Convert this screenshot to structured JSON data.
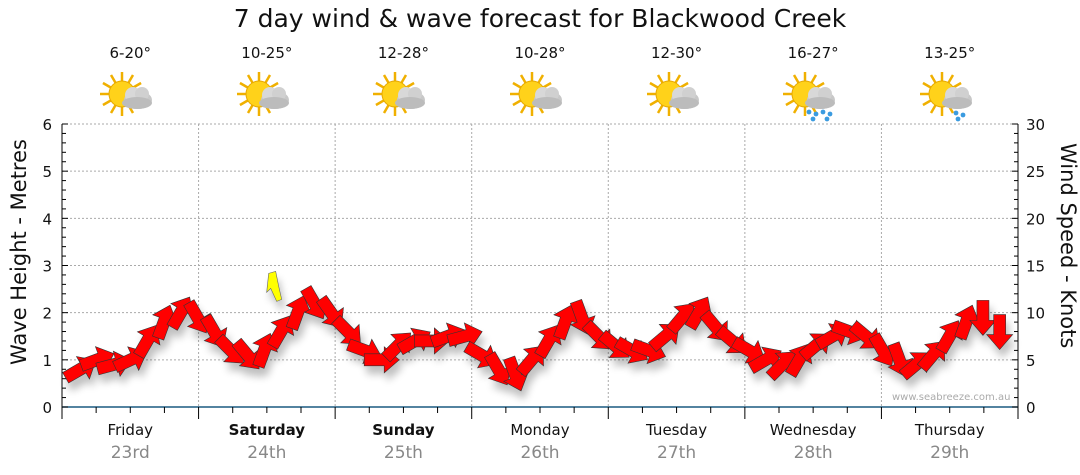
{
  "title": "7 day wind & wave forecast for Blackwood Creek",
  "left_axis_label": "Wave Height - Metres",
  "right_axis_label": "Wind Speed - Knots",
  "watermark": "www.seabreeze.com.au",
  "days": [
    {
      "name": "Friday",
      "date": "23rd",
      "temp": "6-20°",
      "icon": "partly-cloudy-icon",
      "bold": false
    },
    {
      "name": "Saturday",
      "date": "24th",
      "temp": "10-25°",
      "icon": "partly-cloudy-icon",
      "bold": true
    },
    {
      "name": "Sunday",
      "date": "25th",
      "temp": "12-28°",
      "icon": "partly-cloudy-icon",
      "bold": true
    },
    {
      "name": "Monday",
      "date": "26th",
      "temp": "10-28°",
      "icon": "partly-cloudy-icon",
      "bold": false
    },
    {
      "name": "Tuesday",
      "date": "27th",
      "temp": "12-30°",
      "icon": "partly-cloudy-icon",
      "bold": false
    },
    {
      "name": "Wednesday",
      "date": "28th",
      "temp": "16-27°",
      "icon": "showers-icon",
      "bold": false
    },
    {
      "name": "Thursday",
      "date": "29th",
      "temp": "13-25°",
      "icon": "light-showers-icon",
      "bold": false
    }
  ],
  "colors": {
    "arrow": "#ff0000",
    "gust": "#ffff00",
    "grid": "#aaaaaa",
    "axis": "#1a5a80"
  },
  "chart_data": {
    "type": "scatter",
    "title": "7 day wind & wave forecast for Blackwood Creek",
    "ylabel_left": "Wave Height - Metres",
    "ylabel_right": "Wind Speed - Knots",
    "ylim_left": [
      0,
      6
    ],
    "ylim_right": [
      0,
      30
    ],
    "yticks_left": [
      "0",
      "1",
      "2",
      "3",
      "4",
      "5",
      "6"
    ],
    "yticks_right": [
      "0",
      "5",
      "10",
      "15",
      "20",
      "25",
      "30"
    ],
    "x_days": 7,
    "grid": true,
    "wind_knots": [
      4,
      5,
      4.5,
      5,
      7,
      9,
      10,
      9.5,
      8,
      6,
      5.5,
      6,
      8,
      10,
      11,
      10,
      8,
      6,
      5,
      6.5,
      7,
      7,
      7.5,
      7.5,
      5.5,
      4,
      3.5,
      5,
      7,
      9,
      9.5,
      7.5,
      6.5,
      6,
      6,
      7.5,
      9.5,
      10,
      8.5,
      7,
      6,
      5,
      4.5,
      5,
      6.5,
      7.5,
      8,
      7.5,
      6,
      5,
      4.5,
      5.5,
      7.5,
      9,
      9.5,
      8
    ],
    "wind_dir_deg": [
      -30,
      -20,
      -15,
      -25,
      -60,
      -70,
      -60,
      60,
      60,
      45,
      50,
      -70,
      -60,
      -70,
      60,
      55,
      45,
      20,
      0,
      -45,
      -30,
      0,
      -20,
      -15,
      30,
      60,
      70,
      -50,
      -60,
      -70,
      70,
      45,
      40,
      30,
      20,
      -40,
      -50,
      -60,
      50,
      40,
      30,
      -30,
      -45,
      -60,
      -40,
      -30,
      20,
      40,
      60,
      70,
      -40,
      -50,
      -60,
      -70,
      90,
      90
    ],
    "gust": {
      "day_fraction": 1.55,
      "knots": 13
    }
  }
}
